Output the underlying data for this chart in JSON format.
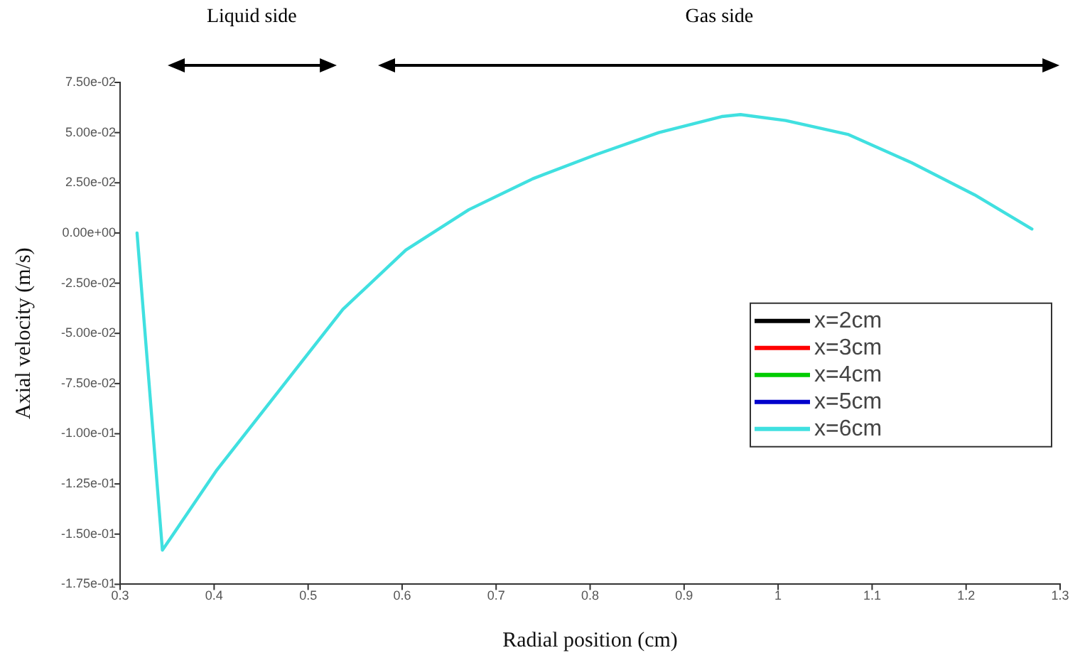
{
  "chart_data": {
    "type": "line",
    "xlabel": "Radial position (cm)",
    "ylabel": "Axial velocity (m/s)",
    "xlim": [
      0.3,
      1.3
    ],
    "xticks": [
      0.3,
      0.4,
      0.5,
      0.6,
      0.7,
      0.8,
      0.9,
      1,
      1.1,
      1.2,
      1.3
    ],
    "ylim": [
      -0.175,
      0.075
    ],
    "yticks": [
      {
        "value": -0.175,
        "label": "-1.75e-01"
      },
      {
        "value": -0.15,
        "label": "-1.50e-01"
      },
      {
        "value": -0.125,
        "label": "-1.25e-01"
      },
      {
        "value": -0.1,
        "label": "-1.00e-01"
      },
      {
        "value": -0.075,
        "label": "-7.50e-02"
      },
      {
        "value": -0.05,
        "label": "-5.00e-02"
      },
      {
        "value": -0.025,
        "label": "-2.50e-02"
      },
      {
        "value": 0,
        "label": "0.00e+00"
      },
      {
        "value": 0.025,
        "label": "2.50e-02"
      },
      {
        "value": 0.05,
        "label": "5.00e-02"
      },
      {
        "value": 0.075,
        "label": "7.50e-02"
      }
    ],
    "x": [
      0.318,
      0.345,
      0.403,
      0.47,
      0.537,
      0.604,
      0.671,
      0.739,
      0.806,
      0.873,
      0.94,
      0.96,
      1.008,
      1.075,
      1.142,
      1.209,
      1.27
    ],
    "series": [
      {
        "name": "x=2cm",
        "color": "#000000",
        "values": [
          null,
          null,
          null,
          null,
          null,
          null,
          null,
          null,
          null,
          null,
          null,
          null,
          null,
          null,
          null,
          null,
          null
        ]
      },
      {
        "name": "x=3cm",
        "color": "#ff0000",
        "values": [
          null,
          null,
          null,
          null,
          null,
          null,
          null,
          null,
          null,
          null,
          null,
          null,
          null,
          null,
          null,
          null,
          null
        ]
      },
      {
        "name": "x=4cm",
        "color": "#00cc00",
        "values": [
          null,
          null,
          null,
          null,
          null,
          null,
          null,
          null,
          null,
          null,
          null,
          null,
          null,
          null,
          null,
          null,
          null
        ]
      },
      {
        "name": "x=5cm",
        "color": "#0000cc",
        "values": [
          null,
          null,
          null,
          null,
          null,
          null,
          null,
          null,
          null,
          null,
          null,
          null,
          null,
          null,
          null,
          null,
          null
        ]
      },
      {
        "name": "x=6cm",
        "color": "#40e0e0",
        "values": [
          0,
          -0.158,
          -0.118,
          -0.078,
          -0.038,
          -0.0085,
          0.0116,
          0.027,
          0.039,
          0.05,
          0.058,
          0.059,
          0.056,
          0.049,
          0.035,
          0.019,
          0.002
        ]
      }
    ],
    "annotations": [
      "Liquid side",
      "Gas side"
    ],
    "legend": "right",
    "grid": false,
    "marker": "none",
    "line_style": "solid"
  }
}
